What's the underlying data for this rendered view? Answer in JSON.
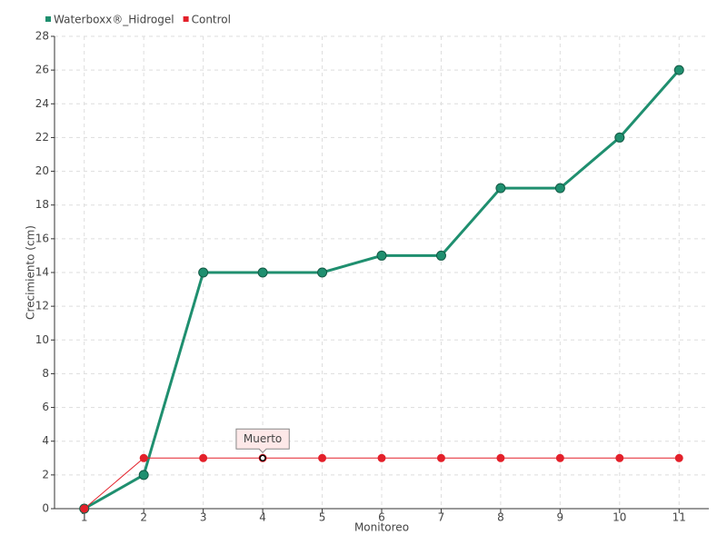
{
  "chart_data": {
    "type": "line",
    "x_label": "Monitoreo",
    "y_label": "Crecimiento (cm)",
    "categories": [
      "1",
      "2",
      "3",
      "4",
      "5",
      "6",
      "7",
      "8",
      "9",
      "10",
      "11"
    ],
    "series": [
      {
        "name": "Waterboxx®_Hidrogel",
        "color": "#1f8f6f",
        "values": [
          0,
          2,
          14,
          14,
          14,
          15,
          15,
          19,
          19,
          22,
          26
        ]
      },
      {
        "name": "Control",
        "color": "#e3202a",
        "values": [
          0,
          3,
          3,
          3,
          3,
          3,
          3,
          3,
          3,
          3,
          3
        ]
      }
    ],
    "ylim": [
      0,
      28
    ],
    "yticks": [
      0,
      2,
      4,
      6,
      8,
      10,
      12,
      14,
      16,
      18,
      20,
      22,
      24,
      26,
      28
    ],
    "grid": true,
    "legend": "top-left",
    "annotations": [
      {
        "text": "Muerto",
        "series": "Control",
        "category": "4"
      }
    ]
  }
}
